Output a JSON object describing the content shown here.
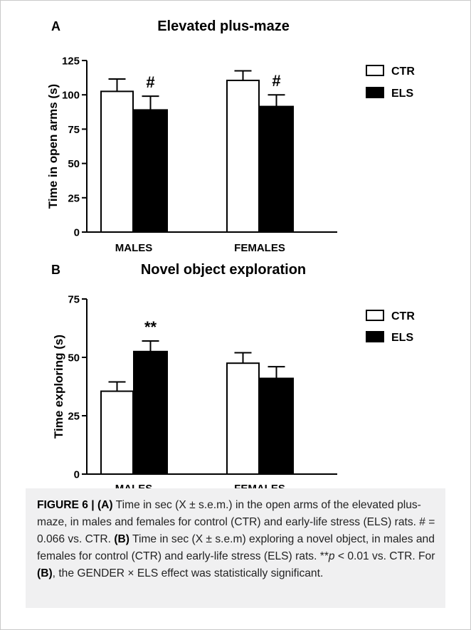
{
  "chart_data": [
    {
      "type": "bar",
      "panel_label": "A",
      "title": "Elevated plus-maze",
      "ylabel": "Time in open arms (s)",
      "xlabel": "",
      "categories": [
        "MALES",
        "FEMALES"
      ],
      "ylim": [
        0,
        125
      ],
      "yticks": [
        0,
        25,
        50,
        75,
        100,
        125
      ],
      "grid": false,
      "legend_position": "right",
      "series": [
        {
          "name": "CTR",
          "fill": "#ffffff",
          "values": [
            102.5,
            110.5
          ],
          "errors": [
            9,
            7
          ]
        },
        {
          "name": "ELS",
          "fill": "#000000",
          "values": [
            89,
            91.5
          ],
          "errors": [
            10,
            8.5
          ]
        }
      ],
      "annotations": [
        {
          "series": "ELS",
          "category": "MALES",
          "text": "#"
        },
        {
          "series": "ELS",
          "category": "FEMALES",
          "text": "#"
        }
      ]
    },
    {
      "type": "bar",
      "panel_label": "B",
      "title": "Novel object exploration",
      "ylabel": "Time exploring (s)",
      "xlabel": "",
      "categories": [
        "MALES",
        "FEMALES"
      ],
      "ylim": [
        0,
        75
      ],
      "yticks": [
        0,
        25,
        50,
        75
      ],
      "grid": false,
      "legend_position": "right",
      "series": [
        {
          "name": "CTR",
          "fill": "#ffffff",
          "values": [
            35.5,
            47.5
          ],
          "errors": [
            4,
            4.5
          ]
        },
        {
          "name": "ELS",
          "fill": "#000000",
          "values": [
            52.5,
            41
          ],
          "errors": [
            4.5,
            5
          ]
        }
      ],
      "annotations": [
        {
          "series": "ELS",
          "category": "MALES",
          "text": "**"
        }
      ]
    }
  ],
  "caption": {
    "figure_label": "FIGURE 6 |",
    "a_label": "(A)",
    "a_text": " Time in sec (X ± s.e.m.) in the open arms of the elevated plus-maze, in males and females for control (CTR) and early-life stress (ELS) rats. # = 0.066 vs. CTR. ",
    "b_label": "(B)",
    "b_text": " Time in sec (X ± s.e.m) exploring a novel object, in males and females for control (CTR) and early-life stress (ELS) rats. **",
    "p_symbol": "p",
    "b_text_2": " < 0.01 vs. CTR. For ",
    "b_label_2": "(B)",
    "b_text_3": ", the GENDER × ELS effect was statistically significant."
  }
}
